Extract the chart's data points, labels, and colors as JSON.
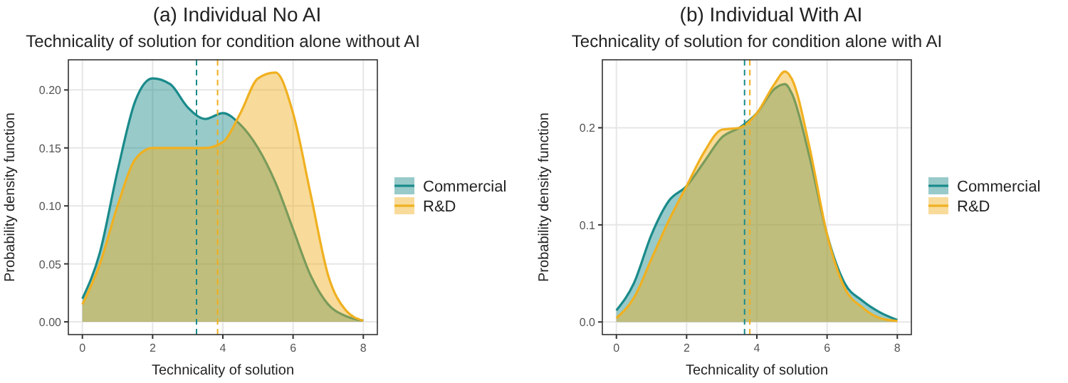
{
  "chart_data": [
    {
      "type": "area",
      "title": "(a) Individual No AI",
      "subtitle": "Technicality of solution for condition alone without AI",
      "xlabel": "Technicality of solution",
      "ylabel": "Probability density function",
      "x": [
        0,
        0.5,
        1,
        1.5,
        2,
        2.5,
        3,
        3.5,
        4,
        4.5,
        5,
        5.5,
        6,
        6.5,
        7,
        7.5,
        8
      ],
      "series": [
        {
          "name": "Commercial",
          "color": "#1a8a8a",
          "values": [
            0.02,
            0.06,
            0.13,
            0.19,
            0.21,
            0.205,
            0.185,
            0.175,
            0.18,
            0.17,
            0.15,
            0.12,
            0.08,
            0.04,
            0.015,
            0.005,
            0.001
          ]
        },
        {
          "name": "R&D",
          "color": "#f0b020",
          "values": [
            0.015,
            0.05,
            0.1,
            0.14,
            0.15,
            0.15,
            0.15,
            0.15,
            0.155,
            0.18,
            0.21,
            0.215,
            0.18,
            0.11,
            0.04,
            0.01,
            0.001
          ]
        }
      ],
      "xlim": [
        -0.4,
        8.4
      ],
      "ylim": [
        -0.011,
        0.226
      ],
      "xticks": [
        0,
        2,
        4,
        6,
        8
      ],
      "yticks": [
        {
          "value": 0,
          "label": "0.00"
        },
        {
          "value": 0.05,
          "label": "0.05"
        },
        {
          "value": 0.1,
          "label": "0.10"
        },
        {
          "value": 0.15,
          "label": "0.15"
        },
        {
          "value": 0.2,
          "label": "0.20"
        }
      ],
      "ref_lines": [
        {
          "axis": "x",
          "value": 3.25,
          "color": "#1a8a8a",
          "line_style": "dashed"
        },
        {
          "axis": "x",
          "value": 3.85,
          "color": "#f0b020",
          "line_style": "dashed"
        }
      ],
      "grid": true,
      "legend": "right",
      "line_style": "solid"
    },
    {
      "type": "area",
      "title": "(b) Individual With AI",
      "subtitle": "Technicality of solution for condition alone with AI",
      "xlabel": "Technicality of solution",
      "ylabel": "Probability density function",
      "x": [
        0,
        0.5,
        1,
        1.5,
        2,
        2.5,
        3,
        3.5,
        4,
        4.5,
        4.8,
        5,
        5.5,
        6,
        6.5,
        7,
        7.5,
        8
      ],
      "series": [
        {
          "name": "Commercial",
          "color": "#1a8a8a",
          "values": [
            0.012,
            0.04,
            0.09,
            0.125,
            0.14,
            0.165,
            0.19,
            0.2,
            0.215,
            0.24,
            0.245,
            0.235,
            0.17,
            0.09,
            0.04,
            0.022,
            0.01,
            0.002
          ]
        },
        {
          "name": "R&D",
          "color": "#f0b020",
          "values": [
            0.004,
            0.025,
            0.065,
            0.105,
            0.14,
            0.175,
            0.198,
            0.2,
            0.215,
            0.245,
            0.258,
            0.25,
            0.18,
            0.09,
            0.035,
            0.015,
            0.004,
            0.001
          ]
        }
      ],
      "xlim": [
        -0.4,
        8.4
      ],
      "ylim": [
        -0.013,
        0.27
      ],
      "xticks": [
        0,
        2,
        4,
        6,
        8
      ],
      "yticks": [
        {
          "value": 0,
          "label": "0.0"
        },
        {
          "value": 0.1,
          "label": "0.1"
        },
        {
          "value": 0.2,
          "label": "0.2"
        }
      ],
      "ref_lines": [
        {
          "axis": "x",
          "value": 3.65,
          "color": "#1a8a8a",
          "line_style": "dashed"
        },
        {
          "axis": "x",
          "value": 3.8,
          "color": "#f0b020",
          "line_style": "dashed"
        }
      ],
      "grid": true,
      "legend": "right",
      "line_style": "solid"
    }
  ]
}
